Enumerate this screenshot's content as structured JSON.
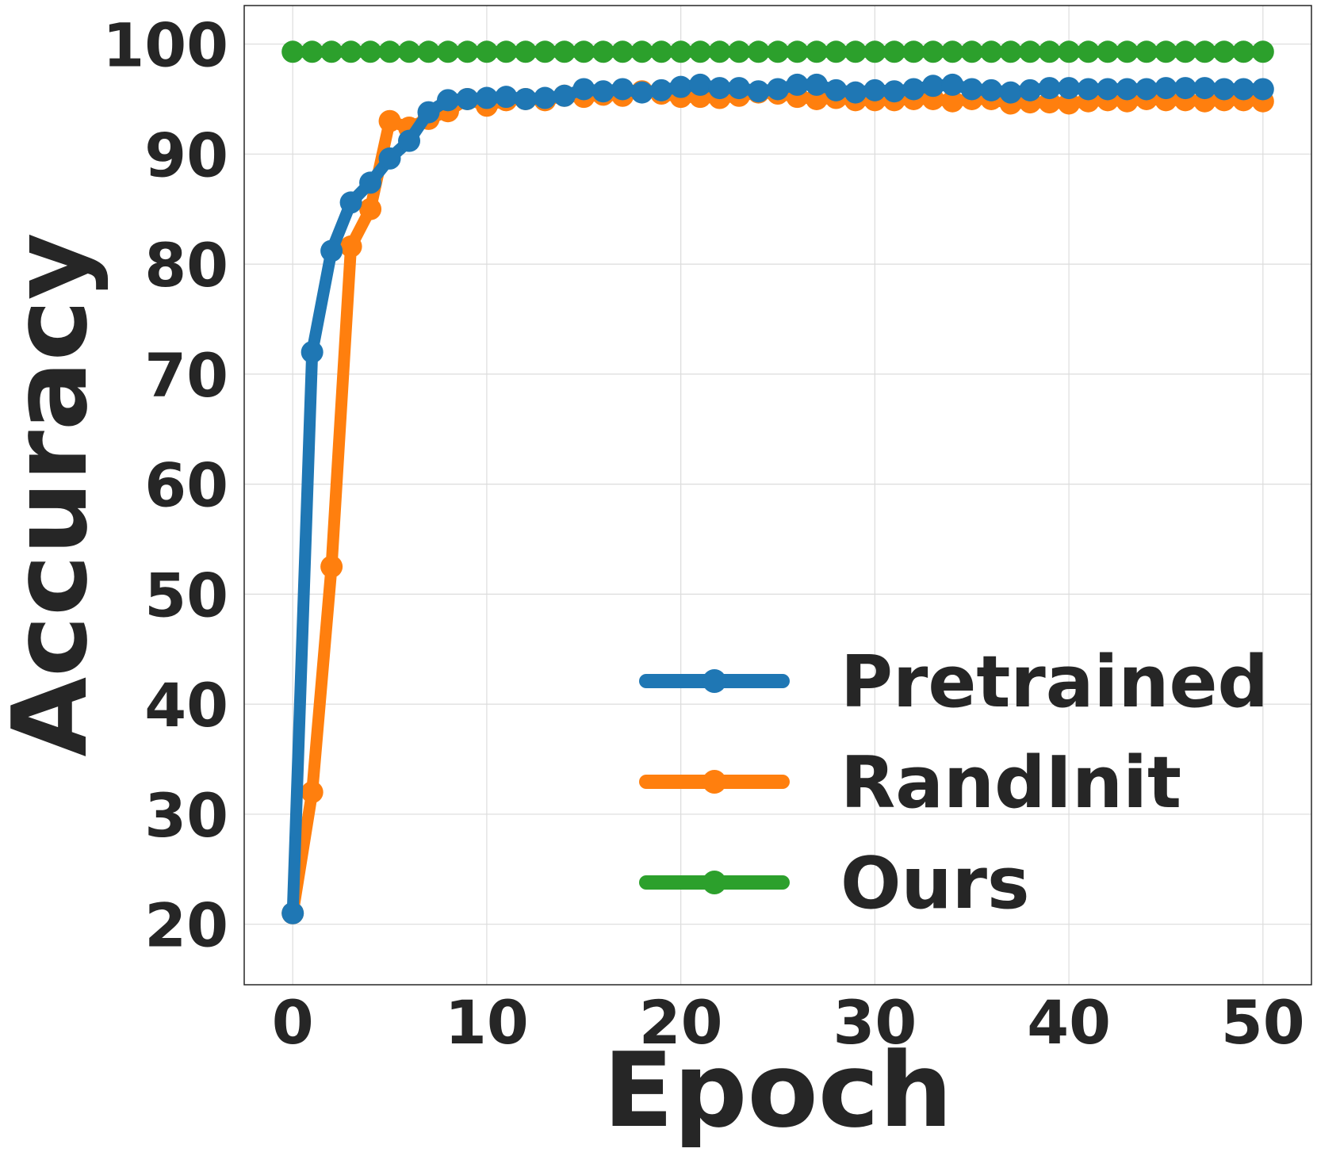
{
  "chart_data": {
    "type": "line",
    "title": "",
    "xlabel": "Epoch",
    "ylabel": "Accuracy",
    "xlim": [
      -2.5,
      52.5
    ],
    "ylim": [
      14.5,
      103.5
    ],
    "xticks": [
      0,
      10,
      20,
      30,
      40,
      50
    ],
    "yticks": [
      20,
      30,
      40,
      50,
      60,
      70,
      80,
      90,
      100
    ],
    "grid": true,
    "legend_position": "lower-right",
    "x": [
      0,
      1,
      2,
      3,
      4,
      5,
      6,
      7,
      8,
      9,
      10,
      11,
      12,
      13,
      14,
      15,
      16,
      17,
      18,
      19,
      20,
      21,
      22,
      23,
      24,
      25,
      26,
      27,
      28,
      29,
      30,
      31,
      32,
      33,
      34,
      35,
      36,
      37,
      38,
      39,
      40,
      41,
      42,
      43,
      44,
      45,
      46,
      47,
      48,
      49,
      50
    ],
    "series": [
      {
        "name": "Pretrained",
        "color": "#1f77b4",
        "values": [
          21.0,
          72.0,
          81.2,
          85.6,
          87.4,
          89.6,
          91.2,
          93.8,
          94.9,
          95.0,
          95.1,
          95.2,
          95.0,
          95.1,
          95.3,
          95.9,
          95.7,
          95.9,
          95.6,
          95.8,
          96.1,
          96.3,
          96.0,
          96.0,
          95.7,
          95.9,
          96.3,
          96.3,
          95.8,
          95.6,
          95.8,
          95.7,
          95.9,
          96.2,
          96.3,
          95.9,
          95.8,
          95.6,
          95.8,
          96.0,
          96.0,
          95.9,
          95.9,
          95.9,
          95.9,
          96.0,
          96.0,
          96.0,
          95.9,
          95.9,
          95.9
        ]
      },
      {
        "name": "RandInit",
        "color": "#ff7f0e",
        "values": [
          21.0,
          32.0,
          52.5,
          81.6,
          85.0,
          93.0,
          92.4,
          93.2,
          93.9,
          95.0,
          94.4,
          94.9,
          95.0,
          94.9,
          95.3,
          95.2,
          95.4,
          95.3,
          95.7,
          95.5,
          95.2,
          95.2,
          95.1,
          95.3,
          95.6,
          95.5,
          95.2,
          95.0,
          95.1,
          94.9,
          94.9,
          94.9,
          95.0,
          95.0,
          94.8,
          95.0,
          95.0,
          94.6,
          94.7,
          94.7,
          94.6,
          94.8,
          94.9,
          94.8,
          95.0,
          94.9,
          94.9,
          94.8,
          94.9,
          94.9,
          94.8
        ]
      },
      {
        "name": "Ours",
        "color": "#2ca02c",
        "values": [
          99.3,
          99.3,
          99.3,
          99.3,
          99.3,
          99.3,
          99.3,
          99.3,
          99.3,
          99.3,
          99.3,
          99.3,
          99.3,
          99.3,
          99.3,
          99.3,
          99.3,
          99.3,
          99.3,
          99.3,
          99.3,
          99.3,
          99.3,
          99.3,
          99.3,
          99.3,
          99.3,
          99.3,
          99.3,
          99.3,
          99.3,
          99.3,
          99.3,
          99.3,
          99.3,
          99.3,
          99.3,
          99.3,
          99.3,
          99.3,
          99.3,
          99.3,
          99.3,
          99.3,
          99.3,
          99.3,
          99.3,
          99.3,
          99.3,
          99.3,
          99.3
        ]
      }
    ]
  }
}
